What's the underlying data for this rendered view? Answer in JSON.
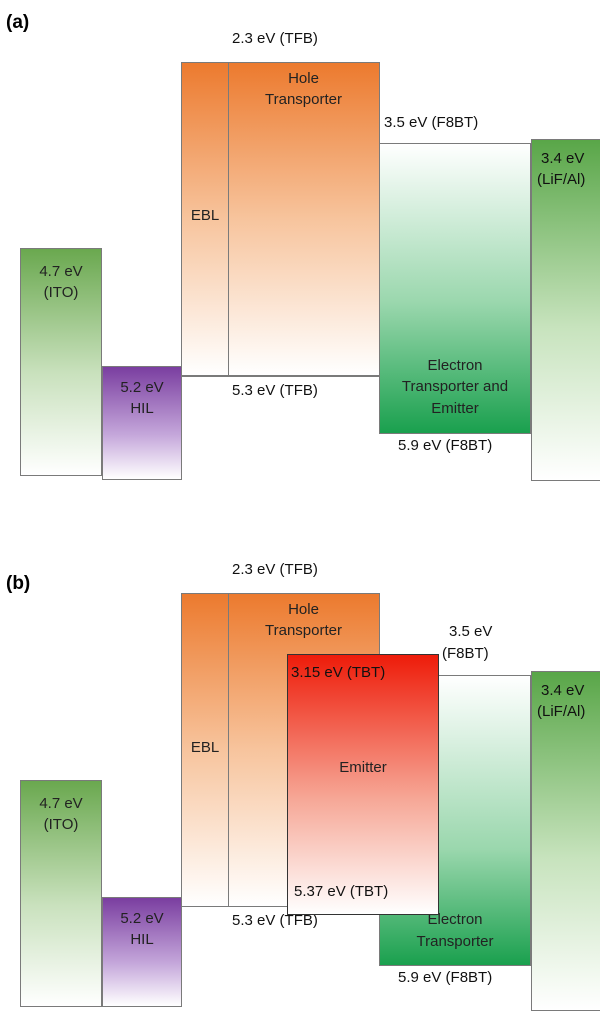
{
  "panel_a": {
    "label": "(a)",
    "ito": {
      "energy": "4.7 eV",
      "name": "(ITO)"
    },
    "hil": {
      "energy": "5.2 eV",
      "name": "HIL"
    },
    "ebl": "EBL",
    "hole_transporter": [
      "Hole",
      "Transporter"
    ],
    "tfb_lumo": "2.3 eV (TFB)",
    "tfb_homo": "5.3 eV (TFB)",
    "f8bt_lumo": "3.5 eV (F8BT)",
    "f8bt_homo": "5.9 eV (F8BT)",
    "electron_emitter": [
      "Electron",
      "Transporter and",
      "Emitter"
    ],
    "cathode": {
      "energy": "3.4 eV",
      "name": "(LiF/Al)"
    }
  },
  "panel_b": {
    "label": "(b)",
    "ito": {
      "energy": "4.7 eV",
      "name": "(ITO)"
    },
    "hil": {
      "energy": "5.2 eV",
      "name": "HIL"
    },
    "ebl": "EBL",
    "hole_transporter": [
      "Hole",
      "Transporter"
    ],
    "tfb_lumo": "2.3 eV (TFB)",
    "tfb_homo": "5.3 eV (TFB)",
    "f8bt_lumo": [
      "3.5 eV",
      "(F8BT)"
    ],
    "f8bt_homo": "5.9 eV (F8BT)",
    "tbt_lumo": "3.15  eV (TBT)",
    "tbt_homo": "5.37  eV (TBT)",
    "emitter": "Emitter",
    "electron_transporter": [
      "Electron",
      "Transporter"
    ],
    "cathode": {
      "energy": "3.4 eV",
      "name": "(LiF/Al)"
    }
  }
}
